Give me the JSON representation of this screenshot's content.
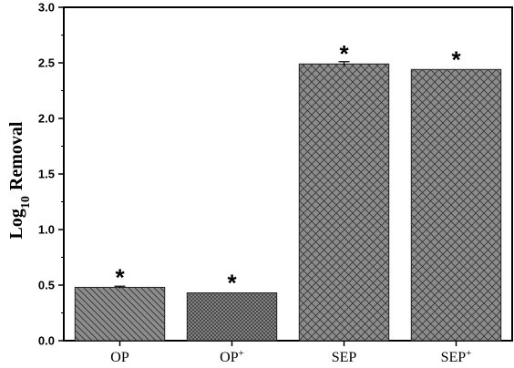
{
  "chart_data": {
    "type": "bar",
    "title": "",
    "xlabel": "",
    "ylabel": {
      "base": "Log",
      "subscript": "10",
      "rest": "Removal"
    },
    "ylim": [
      0,
      3.0
    ],
    "yticks": [
      "0.0",
      "0.5",
      "1.0",
      "1.5",
      "2.0",
      "2.5",
      "3.0"
    ],
    "categories": [
      {
        "label": "OP",
        "sup": ""
      },
      {
        "label": "OP",
        "sup": "+"
      },
      {
        "label": "SEP",
        "sup": ""
      },
      {
        "label": "SEP",
        "sup": "+"
      }
    ],
    "values": [
      0.48,
      0.43,
      2.49,
      2.44
    ],
    "errors": [
      0.01,
      0.0,
      0.02,
      0.0
    ],
    "annotations": [
      "*",
      "*",
      "*",
      "*"
    ],
    "patterns": [
      "diag-left",
      "grid-fine",
      "cross-hatch",
      "cross-hatch"
    ],
    "bar_color": "#8c8c8c",
    "grid": false
  }
}
